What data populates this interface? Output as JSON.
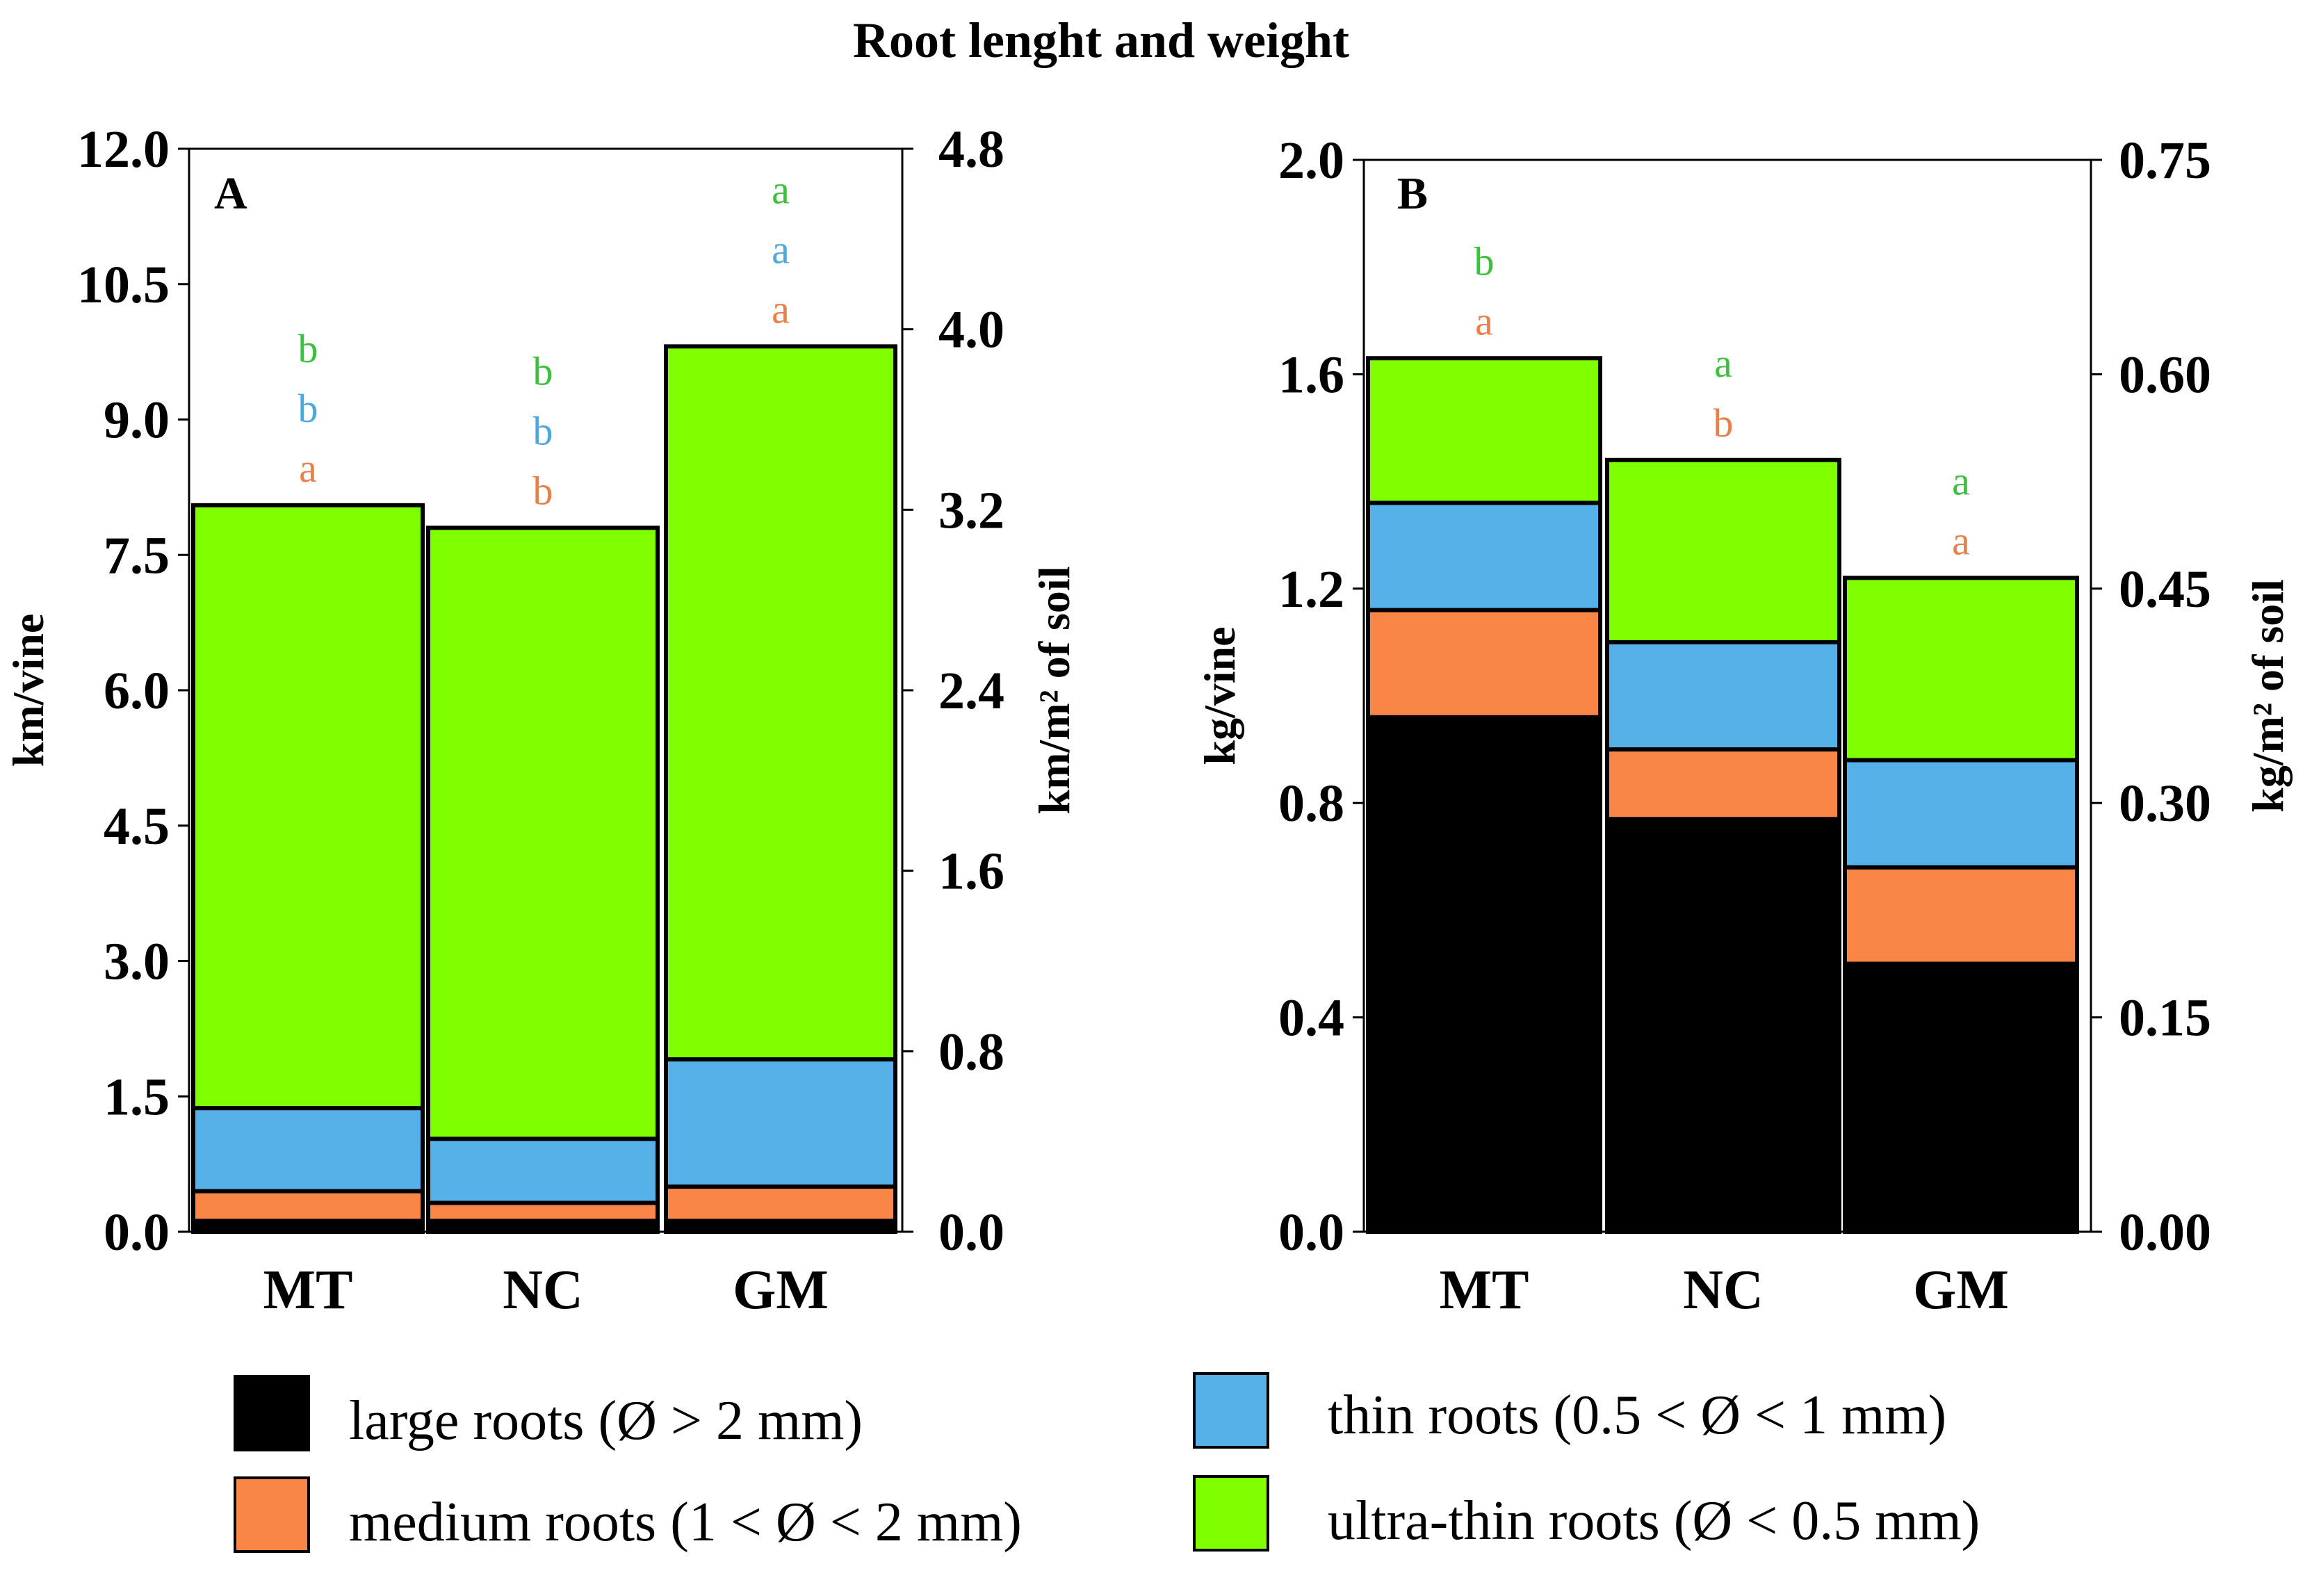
{
  "title": "Root lenght and weight",
  "colors": {
    "large": "#000000",
    "medium": "#f98646",
    "thin": "#57b1e9",
    "ultra": "#80ff00",
    "sig_ultra": "#3fbf3f",
    "sig_thin": "#4fa8dc",
    "sig_medium": "#e8804c"
  },
  "legend": [
    {
      "key": "large",
      "label": "large roots (Ø > 2 mm)"
    },
    {
      "key": "thin",
      "label": "thin roots (0.5 < Ø < 1 mm)"
    },
    {
      "key": "medium",
      "label": "medium roots (1 < Ø < 2 mm)"
    },
    {
      "key": "ultra",
      "label": "ultra-thin roots (Ø < 0.5 mm)"
    }
  ],
  "chart_data": [
    {
      "type": "bar",
      "stacked": true,
      "panel": "A",
      "categories": [
        "MT",
        "NC",
        "GM"
      ],
      "ylabel": "km/vine",
      "ylabel_right": "km/m² of soil",
      "ylim": [
        0,
        12
      ],
      "yticks": [
        "0.0",
        "1.5",
        "3.0",
        "4.5",
        "6.0",
        "7.5",
        "9.0",
        "10.5",
        "12.0"
      ],
      "ylim_right": [
        0,
        4.8
      ],
      "yticks_right": [
        "0.0",
        "0.8",
        "1.6",
        "2.4",
        "3.2",
        "4.0",
        "4.8"
      ],
      "series": [
        {
          "key": "large",
          "values": [
            0.12,
            0.12,
            0.12
          ]
        },
        {
          "key": "medium",
          "values": [
            0.33,
            0.2,
            0.38
          ]
        },
        {
          "key": "thin",
          "values": [
            0.92,
            0.71,
            1.41
          ]
        },
        {
          "key": "ultra",
          "values": [
            6.68,
            6.77,
            7.9
          ]
        }
      ],
      "totals": [
        8.05,
        7.8,
        9.81
      ],
      "significance": {
        "ultra": [
          "b",
          "b",
          "a"
        ],
        "thin": [
          "b",
          "b",
          "a"
        ],
        "medium": [
          "a",
          "b",
          "a"
        ]
      }
    },
    {
      "type": "bar",
      "stacked": true,
      "panel": "B",
      "categories": [
        "MT",
        "NC",
        "GM"
      ],
      "ylabel": "kg/vine",
      "ylabel_right": "kg/m² of soil",
      "ylim": [
        0,
        2.0
      ],
      "yticks": [
        "0.0",
        "0.4",
        "0.8",
        "1.2",
        "1.6",
        "2.0"
      ],
      "ylim_right": [
        0,
        0.75
      ],
      "yticks_right": [
        "0.00",
        "0.15",
        "0.30",
        "0.45",
        "0.60",
        "0.75"
      ],
      "series": [
        {
          "key": "large",
          "values": [
            0.96,
            0.77,
            0.5
          ]
        },
        {
          "key": "medium",
          "values": [
            0.2,
            0.13,
            0.18
          ]
        },
        {
          "key": "thin",
          "values": [
            0.2,
            0.2,
            0.2
          ]
        },
        {
          "key": "ultra",
          "values": [
            0.27,
            0.34,
            0.34
          ]
        }
      ],
      "totals": [
        1.63,
        1.44,
        1.22
      ],
      "significance": {
        "ultra": [
          "b",
          "a",
          "a"
        ],
        "medium": [
          "a",
          "b",
          "a"
        ]
      }
    }
  ]
}
